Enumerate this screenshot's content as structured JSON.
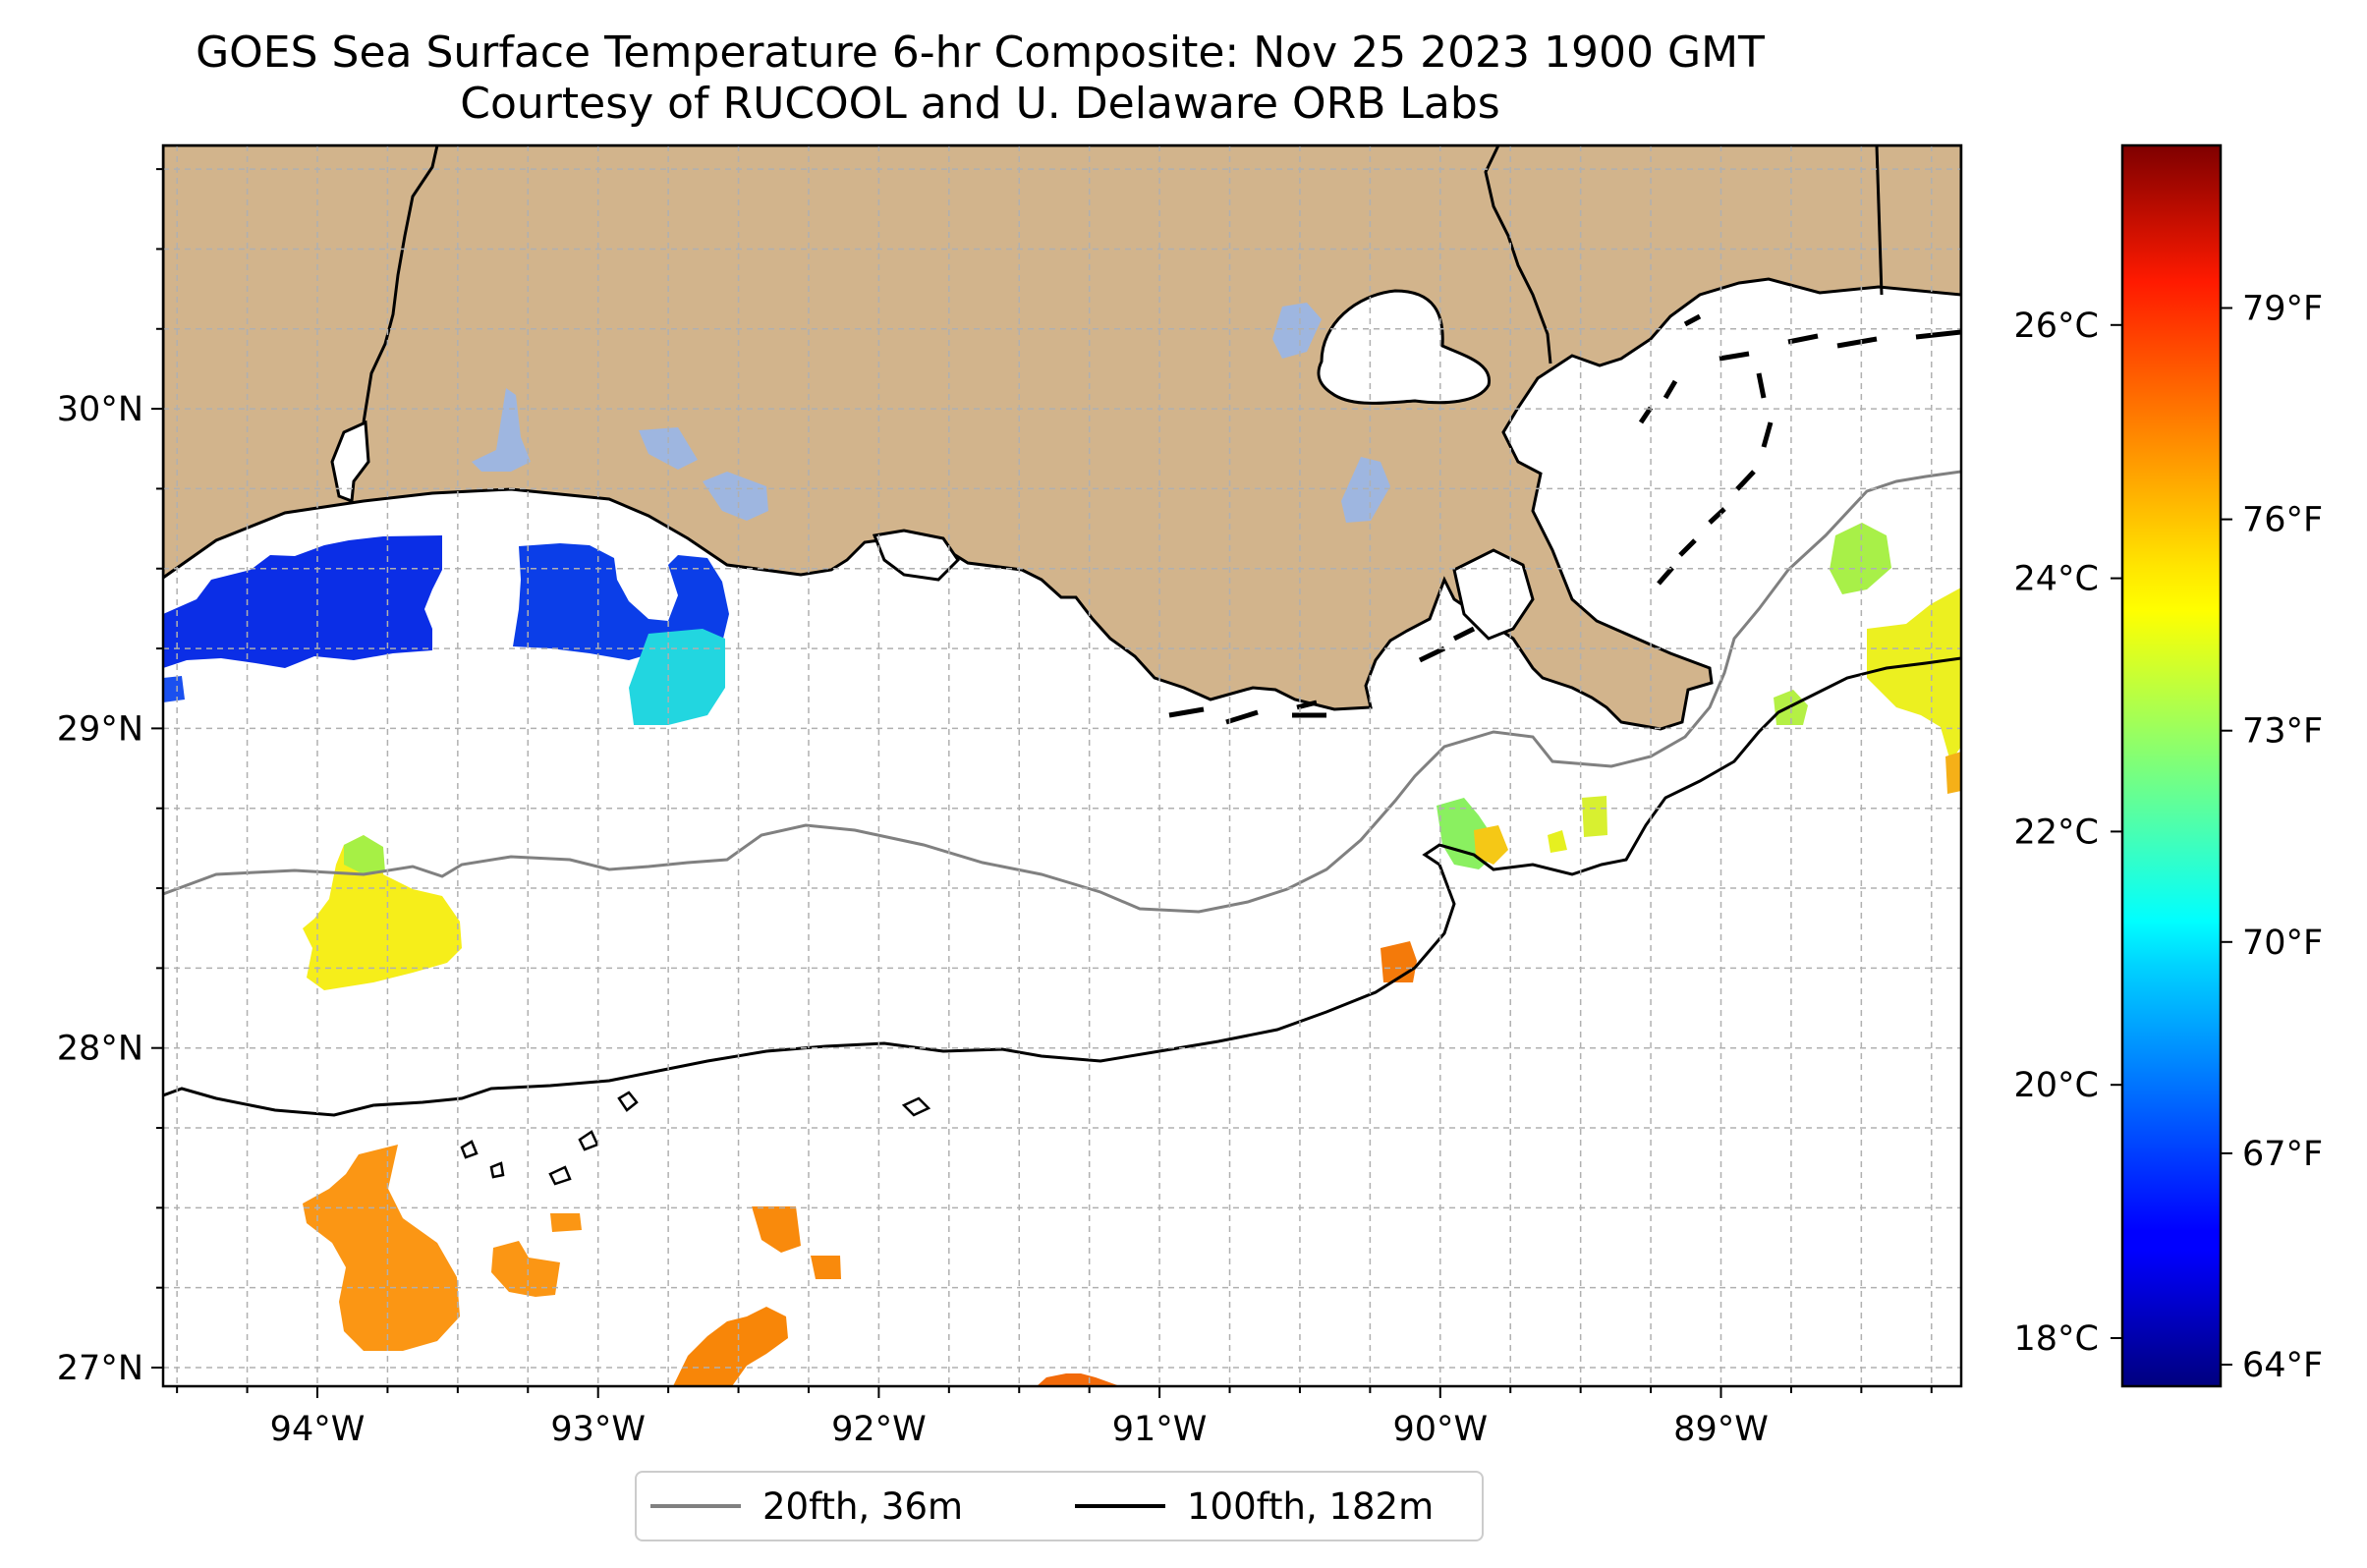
{
  "title_line1": "GOES Sea Surface Temperature 6-hr Composite: Nov 25 2023 1900 GMT",
  "title_line2": "Courtesy of RUCOOL and U. Delaware ORB Labs",
  "map": {
    "lon_ticks": [
      {
        "value": -94,
        "label": "94°W"
      },
      {
        "value": -93,
        "label": "93°W"
      },
      {
        "value": -92,
        "label": "92°W"
      },
      {
        "value": -91,
        "label": "91°W"
      },
      {
        "value": -90,
        "label": "90°W"
      },
      {
        "value": -89,
        "label": "89°W"
      }
    ],
    "lat_ticks": [
      {
        "value": 27,
        "label": "27°N"
      },
      {
        "value": 28,
        "label": "28°N"
      },
      {
        "value": 29,
        "label": "29°N"
      },
      {
        "value": 30,
        "label": "30°N"
      }
    ],
    "land_color": "#d2b48c",
    "water_inland_color": "#9eb6e0"
  },
  "colorbar": {
    "colormap": "jet",
    "celsius_ticks": [
      {
        "value": 18,
        "label": "18°C"
      },
      {
        "value": 20,
        "label": "20°C"
      },
      {
        "value": 22,
        "label": "22°C"
      },
      {
        "value": 24,
        "label": "24°C"
      },
      {
        "value": 26,
        "label": "26°C"
      }
    ],
    "fahrenheit_ticks": [
      {
        "value": 64,
        "label": "64°F"
      },
      {
        "value": 67,
        "label": "67°F"
      },
      {
        "value": 70,
        "label": "70°F"
      },
      {
        "value": 73,
        "label": "73°F"
      },
      {
        "value": 76,
        "label": "76°F"
      },
      {
        "value": 79,
        "label": "79°F"
      }
    ]
  },
  "legend": {
    "entries": [
      {
        "label": "20fth, 36m",
        "color": "#808080"
      },
      {
        "label": "100fth, 182m",
        "color": "#000000"
      }
    ]
  }
}
